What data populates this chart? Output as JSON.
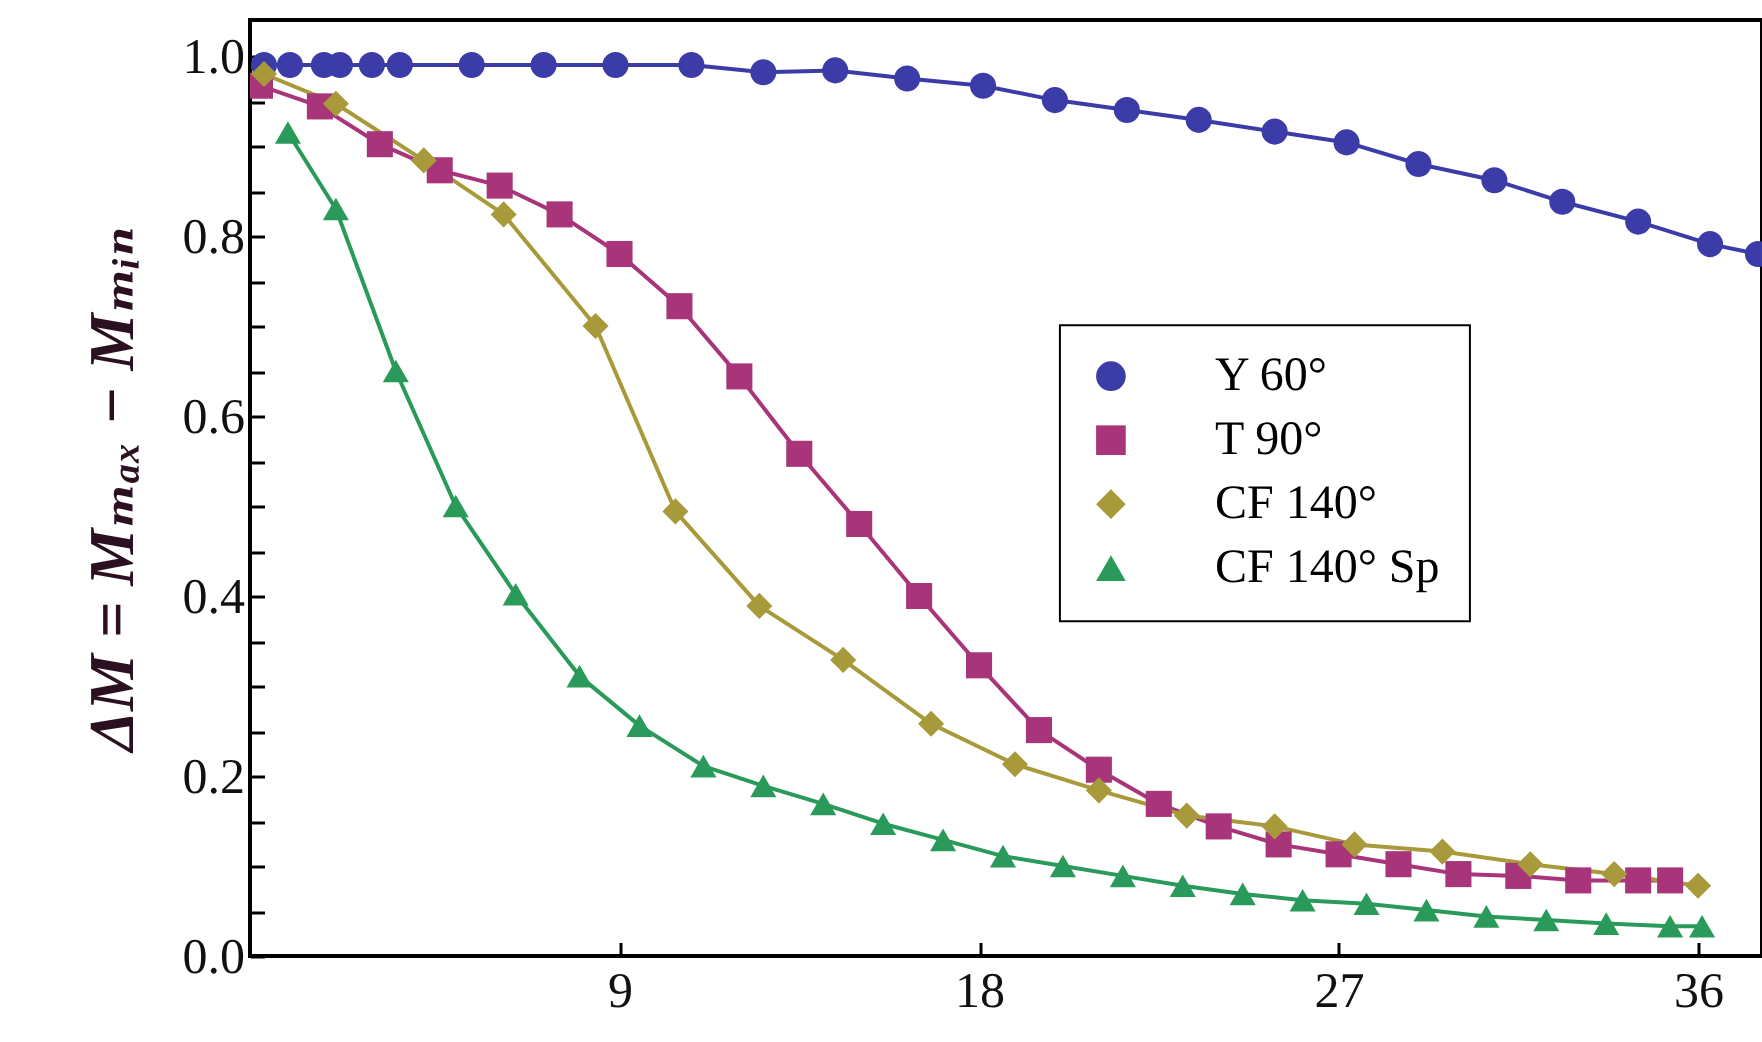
{
  "chart_data": {
    "type": "line",
    "ylabel": "ΔM = Mₘₐₓ − Mₘᵢₙ",
    "xlim": [
      -0.25,
      37.6
    ],
    "xticks": [
      9,
      18,
      27,
      36
    ],
    "ylim": [
      0,
      1.04
    ],
    "yticks": [
      {
        "value": 0,
        "label": "0.0"
      },
      {
        "value": 0.05,
        "label": null
      },
      {
        "value": 0.1,
        "label": null
      },
      {
        "value": 0.15,
        "label": null
      },
      0.2,
      {
        "value": 0.25,
        "label": null
      },
      {
        "value": 0.3,
        "label": null
      },
      {
        "value": 0.35,
        "label": null
      },
      0.4,
      {
        "value": 0.45,
        "label": null
      },
      {
        "value": 0.5,
        "label": null
      },
      {
        "value": 0.55,
        "label": null
      },
      0.6,
      {
        "value": 0.65,
        "label": null
      },
      {
        "value": 0.7,
        "label": null
      },
      {
        "value": 0.75,
        "label": null
      },
      0.8,
      {
        "value": 0.85,
        "label": null
      },
      {
        "value": 0.9,
        "label": null
      },
      {
        "value": 0.95,
        "label": null
      },
      {
        "value": 1,
        "label": "1.0"
      }
    ],
    "grid": false,
    "legend": "right",
    "line_style": "solid",
    "series": [
      {
        "name": "Y 60°",
        "color": "#3c3ca8",
        "marker": "circle",
        "x": [
          0.1,
          0.75,
          1.6,
          2,
          2.8,
          3.5,
          5.3,
          7.1,
          8.9,
          10.8,
          12.6,
          14.4,
          16.2,
          18.1,
          19.9,
          21.7,
          23.5,
          25.4,
          27.2,
          29,
          30.9,
          32.6,
          34.5,
          36.3,
          37.5
        ],
        "values": [
          0.99,
          0.99,
          0.99,
          0.99,
          0.99,
          0.99,
          0.99,
          0.99,
          0.99,
          0.99,
          0.982,
          0.984,
          0.975,
          0.967,
          0.951,
          0.94,
          0.929,
          0.916,
          0.904,
          0.88,
          0.862,
          0.838,
          0.816,
          0.791,
          0.78
        ]
      },
      {
        "name": "T 90°",
        "color": "#a8357a",
        "marker": "square",
        "x": [
          0,
          1.5,
          3,
          4.5,
          6,
          7.5,
          9,
          10.5,
          12,
          13.5,
          15,
          16.5,
          18,
          19.5,
          21,
          22.5,
          24,
          25.5,
          27,
          28.5,
          30,
          31.5,
          33,
          34.5,
          35.3
        ],
        "values": [
          0.967,
          0.944,
          0.902,
          0.873,
          0.856,
          0.824,
          0.78,
          0.722,
          0.644,
          0.558,
          0.48,
          0.4,
          0.323,
          0.251,
          0.207,
          0.169,
          0.144,
          0.124,
          0.113,
          0.102,
          0.091,
          0.089,
          0.084,
          0.084,
          0.084
        ]
      },
      {
        "name": "CF 140°",
        "color": "#a89a3a",
        "marker": "diamond",
        "x": [
          0.1,
          1.9,
          4.1,
          6.1,
          8.4,
          10.4,
          12.5,
          14.6,
          16.8,
          18.9,
          21,
          23.2,
          25.4,
          27.4,
          29.6,
          31.8,
          33.9,
          36
        ],
        "values": [
          0.98,
          0.947,
          0.884,
          0.824,
          0.7,
          0.494,
          0.389,
          0.329,
          0.258,
          0.213,
          0.184,
          0.156,
          0.144,
          0.124,
          0.116,
          0.102,
          0.091,
          0.078
        ]
      },
      {
        "name": "CF 140° Sp",
        "color": "#2a9a5a",
        "marker": "triangle",
        "x": [
          0.7,
          1.9,
          3.4,
          4.9,
          6.4,
          8,
          9.5,
          11.1,
          12.6,
          14.1,
          15.6,
          17.1,
          18.6,
          20.1,
          21.6,
          23.1,
          24.6,
          26.1,
          27.7,
          29.2,
          30.7,
          32.2,
          33.7,
          35.3,
          36.1
        ],
        "values": [
          0.915,
          0.83,
          0.65,
          0.5,
          0.402,
          0.311,
          0.256,
          0.211,
          0.189,
          0.169,
          0.147,
          0.129,
          0.111,
          0.1,
          0.089,
          0.078,
          0.069,
          0.062,
          0.058,
          0.051,
          0.044,
          0.04,
          0.036,
          0.033,
          0.033
        ]
      }
    ]
  }
}
